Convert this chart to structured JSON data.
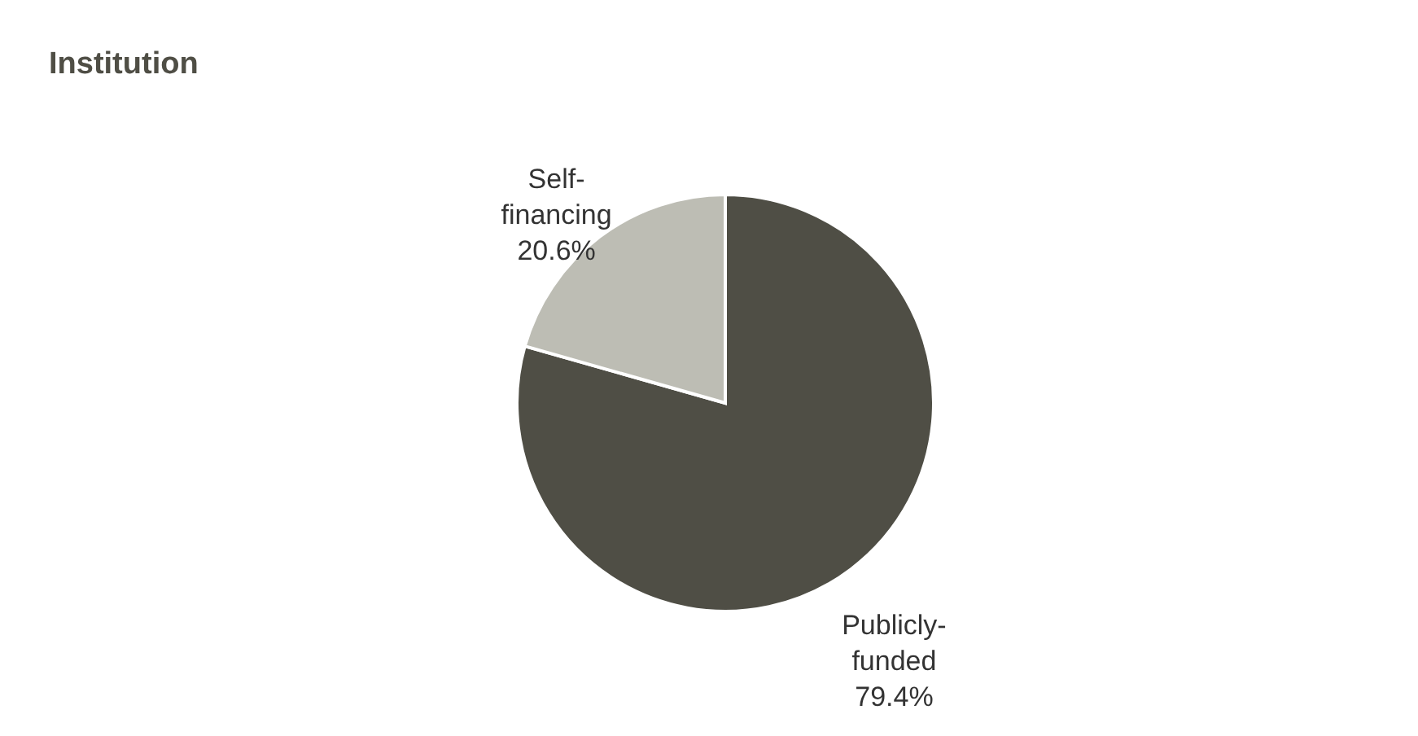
{
  "chart_data": {
    "type": "pie",
    "title": "Institution",
    "categories": [
      "Publicly-funded",
      "Self-financing"
    ],
    "values": [
      79.4,
      20.6
    ],
    "colors": [
      "#4f4e45",
      "#bdbdb4"
    ],
    "value_labels": [
      "79.4%",
      "20.6%"
    ],
    "legend": false
  }
}
